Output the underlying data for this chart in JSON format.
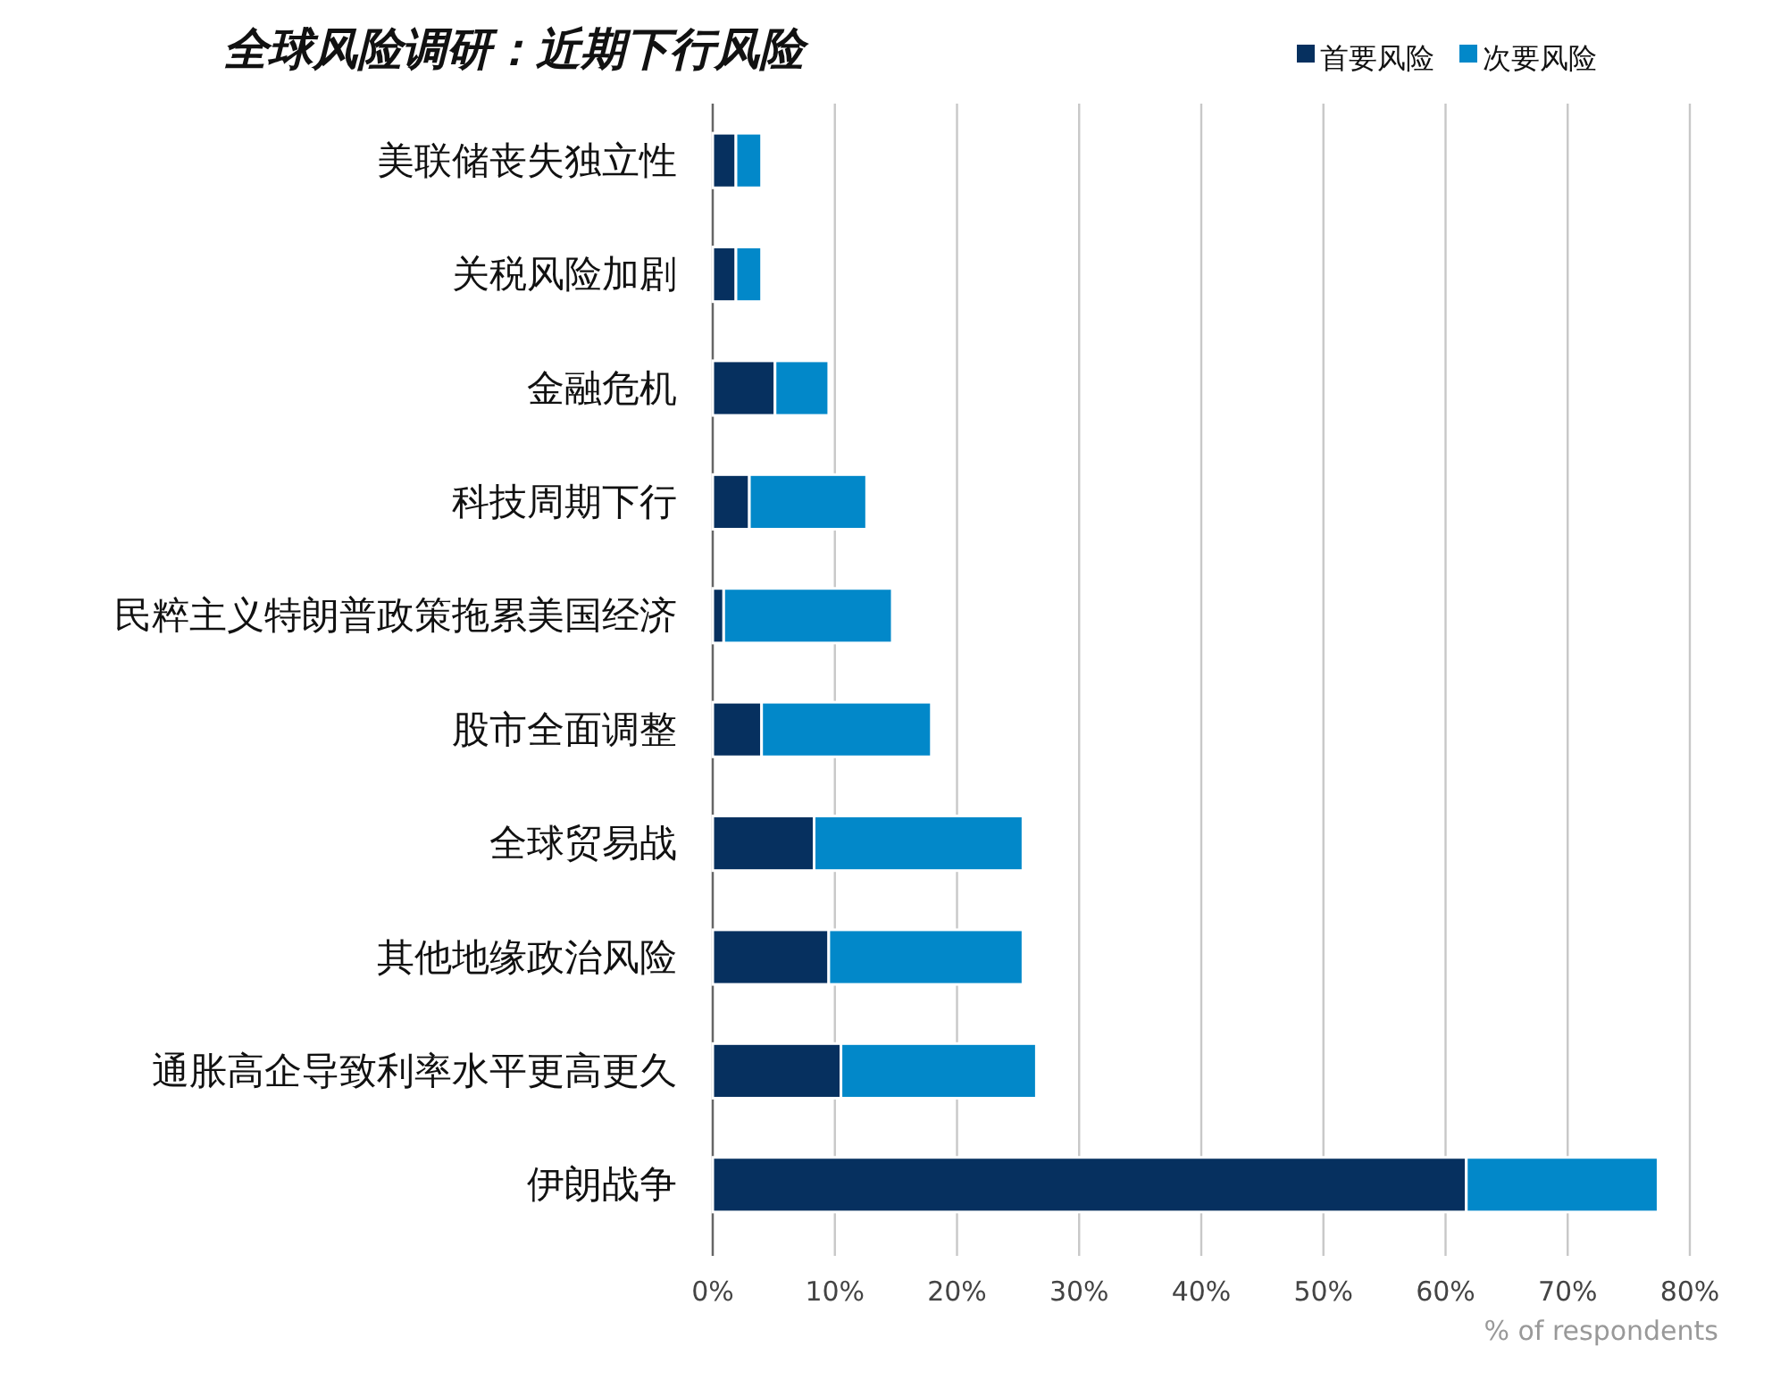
{
  "chart_data": {
    "type": "bar",
    "orientation": "horizontal",
    "stacked": true,
    "title": "全球风险调研：近期下行风险",
    "xlabel": "% of respondents",
    "categories": [
      "美联储丧失独立性",
      "关税风险加剧",
      "金融危机",
      "科技周期下行",
      "民粹主义特朗普政策拖累美国经济",
      "股市全面调整",
      "全球贸易战",
      "其他地缘政治风险",
      "通胀高企导致利率水平更高更久",
      "伊朗战争"
    ],
    "series": [
      {
        "name": "首要风险",
        "color": "#06305f",
        "values": [
          1.9,
          1.9,
          5.1,
          3.0,
          0.9,
          4.0,
          8.3,
          9.5,
          10.5,
          61.7
        ]
      },
      {
        "name": "次要风险",
        "color": "#0288c9",
        "values": [
          2.1,
          2.1,
          4.4,
          9.6,
          13.8,
          13.9,
          17.1,
          15.9,
          16.0,
          15.7
        ]
      }
    ],
    "xlim": [
      0,
      80
    ],
    "xticks": [
      {
        "value": 0,
        "label": "0%"
      },
      {
        "value": 10,
        "label": "10%"
      },
      {
        "value": 20,
        "label": "20%"
      },
      {
        "value": 30,
        "label": "30%"
      },
      {
        "value": 40,
        "label": "40%"
      },
      {
        "value": 50,
        "label": "50%"
      },
      {
        "value": 60,
        "label": "60%"
      },
      {
        "value": 70,
        "label": "70%"
      },
      {
        "value": 80,
        "label": "80%"
      }
    ],
    "grid": "x",
    "legend": "top right"
  }
}
